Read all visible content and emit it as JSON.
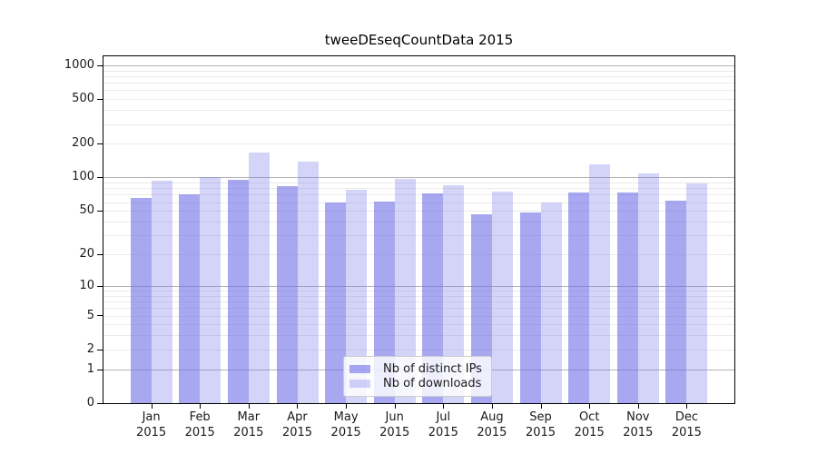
{
  "title": "tweeDEseqCountData 2015",
  "colors": {
    "bar_distinct_ips": "rgba(115,115,233,0.62)",
    "bar_downloads": "rgba(115,115,233,0.31)",
    "major_grid": "#b3b3b3",
    "minor_grid": "#ebebeb",
    "axis_line": "#000000",
    "tick_text": "#1a1a1a",
    "legend_border": "#cccccc",
    "legend_bg": "rgba(255,255,255,0.8)"
  },
  "y_axis": {
    "ticks": [
      0,
      1,
      2,
      5,
      10,
      20,
      50,
      100,
      200,
      500,
      1000
    ]
  },
  "x_axis": {
    "months": [
      "Jan",
      "Feb",
      "Mar",
      "Apr",
      "May",
      "Jun",
      "Jul",
      "Aug",
      "Sep",
      "Oct",
      "Nov",
      "Dec"
    ],
    "year": "2015"
  },
  "legend": {
    "items": [
      {
        "label": "Nb of distinct IPs",
        "series": "distinct_ips"
      },
      {
        "label": "Nb of downloads",
        "series": "downloads"
      }
    ]
  },
  "chart_data": {
    "type": "bar",
    "title": "tweeDEseqCountData 2015",
    "categories": [
      "Jan 2015",
      "Feb 2015",
      "Mar 2015",
      "Apr 2015",
      "May 2015",
      "Jun 2015",
      "Jul 2015",
      "Aug 2015",
      "Sep 2015",
      "Oct 2015",
      "Nov 2015",
      "Dec 2015"
    ],
    "series": [
      {
        "name": "Nb of distinct IPs",
        "values": [
          65,
          70,
          95,
          83,
          60,
          61,
          72,
          47,
          48,
          73,
          73,
          62
        ]
      },
      {
        "name": "Nb of downloads",
        "values": [
          93,
          100,
          168,
          138,
          78,
          97,
          85,
          75,
          60,
          132,
          108,
          89
        ]
      }
    ],
    "y_scale": "log1p",
    "ylim": [
      0,
      1200
    ],
    "y_ticks": [
      0,
      1,
      2,
      5,
      10,
      20,
      50,
      100,
      200,
      500,
      1000
    ],
    "grid": "horizontal-major-and-minor",
    "legend_position": "lower-center-inside"
  }
}
